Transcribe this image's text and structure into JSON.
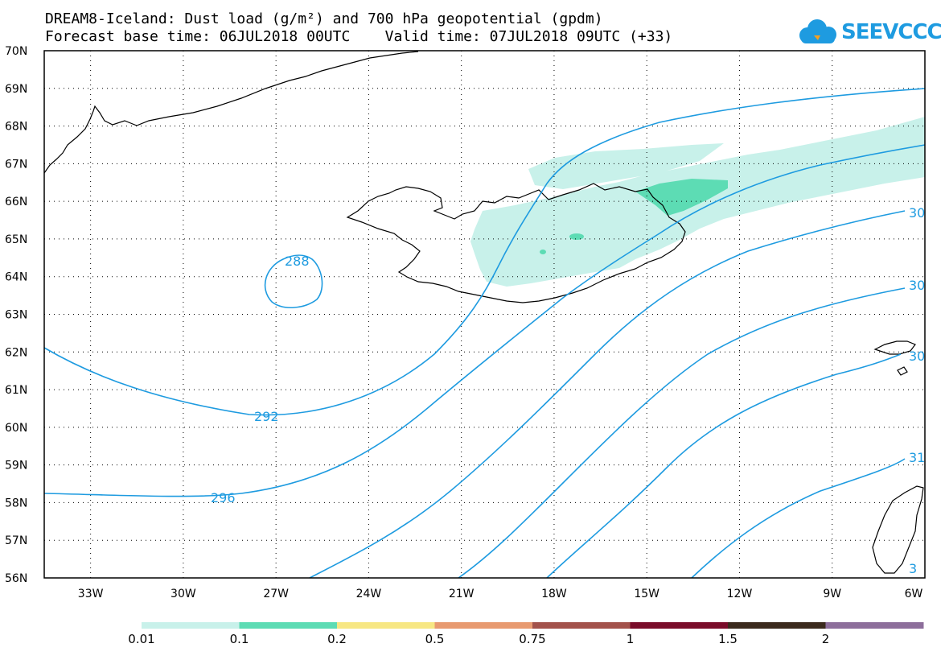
{
  "title": {
    "line1": "DREAM8-Iceland: Dust load (g/m²) and 700 hPa geopotential (gpdm)",
    "line2": "Forecast base time: 06JUL2018 00UTC    Valid time: 07JUL2018 09UTC (+33)"
  },
  "logo": {
    "text": "SEEVCCC",
    "icon": "cloud-icon",
    "color": "#1e9be0"
  },
  "map": {
    "lat_labels": [
      "70N",
      "69N",
      "68N",
      "67N",
      "66N",
      "65N",
      "64N",
      "63N",
      "62N",
      "61N",
      "60N",
      "59N",
      "58N",
      "57N",
      "56N"
    ],
    "lon_labels": [
      "33W",
      "30W",
      "27W",
      "24W",
      "21W",
      "18W",
      "15W",
      "12W",
      "9W",
      "6W"
    ],
    "lat_range": [
      56,
      70
    ],
    "lon_range": [
      -34.5,
      -6
    ],
    "gridlines": "dotted",
    "contour_labels": [
      "288",
      "292",
      "296",
      "30",
      "30",
      "30",
      "31",
      "3"
    ],
    "contour_color": "#1e9be0",
    "coastline_color": "#000000"
  },
  "legend": {
    "colors": [
      "#c8f1ea",
      "#5ddcb4",
      "#f7e783",
      "#e89a70",
      "#a3524b",
      "#7a0c2a",
      "#3b2a1d",
      "#8d6e9b"
    ],
    "labels": [
      "0.01",
      "0.1",
      "0.2",
      "0.5",
      "0.75",
      "1",
      "1.5",
      "2"
    ]
  }
}
